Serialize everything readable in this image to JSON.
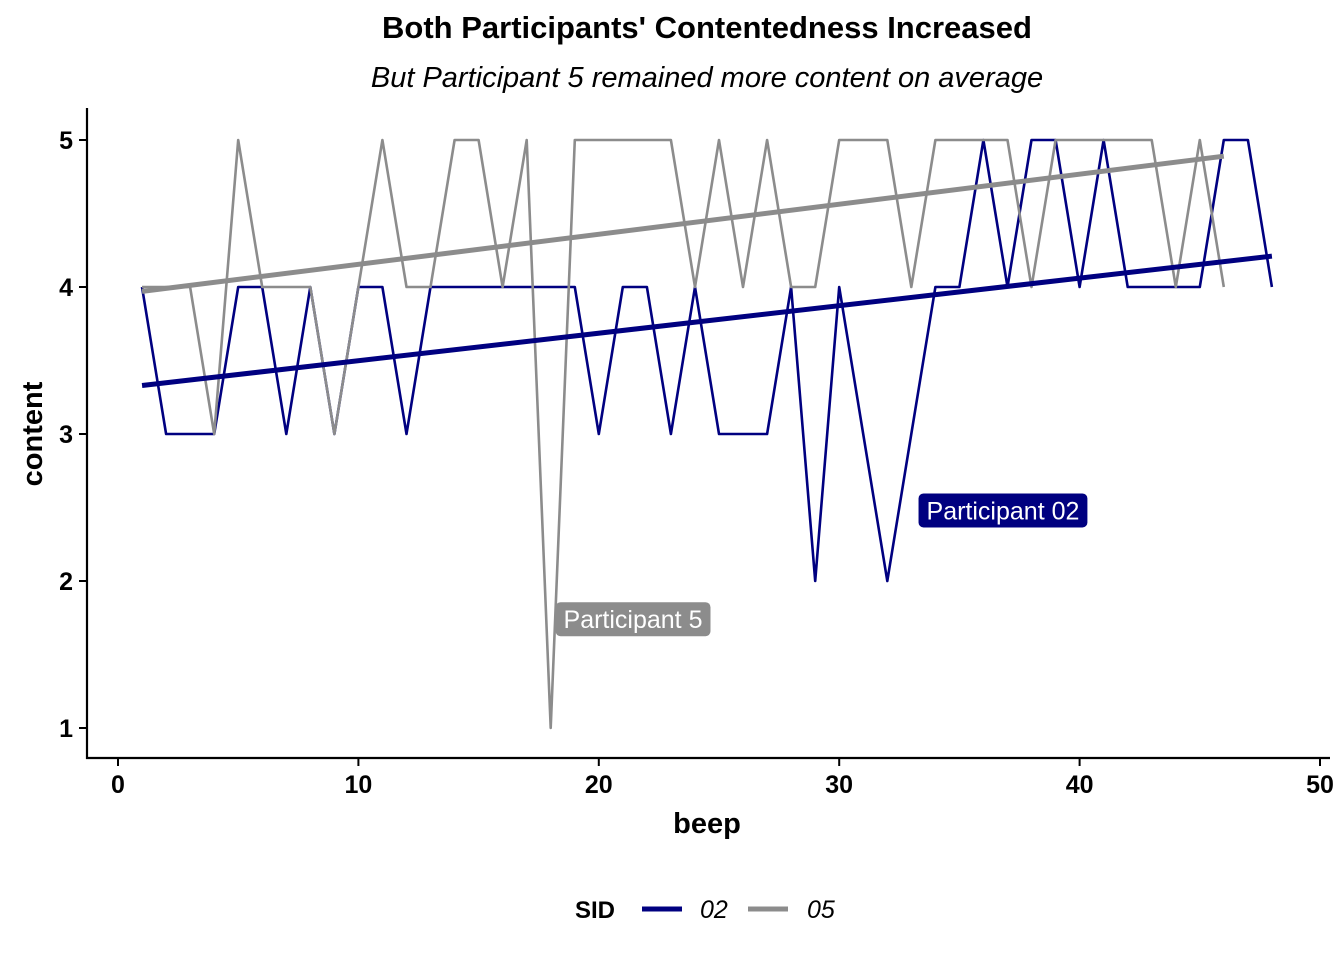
{
  "colors": {
    "p02": "#000080",
    "p05": "#8c8c8c"
  },
  "chart_data": {
    "type": "line",
    "title": "Both Participants' Contentedness Increased",
    "subtitle": "But Participant 5 remained more content on average",
    "xlabel": "beep",
    "ylabel": "content",
    "xlim": [
      0,
      50
    ],
    "ylim": [
      1,
      5
    ],
    "xticks": [
      "0",
      "10",
      "20",
      "30",
      "40",
      "50"
    ],
    "yticks": [
      "1",
      "2",
      "3",
      "4",
      "5"
    ],
    "grid": false,
    "legend": {
      "title": "SID",
      "position": "bottom"
    },
    "series": [
      {
        "name": "02",
        "color": "#000080",
        "x": [
          1,
          2,
          3,
          4,
          5,
          6,
          7,
          8,
          9,
          10,
          11,
          12,
          13,
          14,
          15,
          16,
          17,
          18,
          19,
          20,
          21,
          22,
          23,
          24,
          25,
          26,
          27,
          28,
          29,
          30,
          31,
          32,
          33,
          34,
          35,
          36,
          37,
          38,
          39,
          40,
          41,
          42,
          43,
          44,
          45,
          46,
          47,
          48
        ],
        "y": [
          4,
          3,
          3,
          3,
          4,
          4,
          3,
          4,
          3,
          4,
          4,
          3,
          4,
          4,
          4,
          4,
          4,
          4,
          4,
          3,
          4,
          4,
          3,
          4,
          3,
          3,
          3,
          4,
          2,
          4,
          3,
          2,
          3,
          4,
          4,
          5,
          4,
          5,
          5,
          4,
          5,
          4,
          4,
          4,
          4,
          5,
          5,
          4
        ],
        "trend": {
          "x": [
            1,
            48
          ],
          "y": [
            3.33,
            4.21
          ]
        },
        "annotation": {
          "text": "Participant 02",
          "x": 33.3,
          "y": 2.48
        }
      },
      {
        "name": "05",
        "color": "#8c8c8c",
        "x": [
          1,
          2,
          3,
          4,
          5,
          6,
          7,
          8,
          9,
          10,
          11,
          12,
          13,
          14,
          15,
          16,
          17,
          18,
          19,
          20,
          21,
          22,
          23,
          24,
          25,
          26,
          27,
          28,
          29,
          30,
          31,
          32,
          33,
          34,
          35,
          36,
          37,
          38,
          39,
          40,
          41,
          42,
          43,
          44,
          45,
          46
        ],
        "y": [
          4,
          4,
          4,
          3,
          5,
          4,
          4,
          4,
          3,
          4,
          5,
          4,
          4,
          5,
          5,
          4,
          5,
          1,
          5,
          5,
          5,
          5,
          5,
          4,
          5,
          4,
          5,
          4,
          4,
          5,
          5,
          5,
          4,
          5,
          5,
          5,
          5,
          4,
          5,
          5,
          5,
          5,
          5,
          4,
          5,
          4
        ],
        "trend": {
          "x": [
            1,
            46
          ],
          "y": [
            3.97,
            4.89
          ]
        },
        "annotation": {
          "text": "Participant 5",
          "x": 18.2,
          "y": 1.74
        }
      }
    ]
  }
}
